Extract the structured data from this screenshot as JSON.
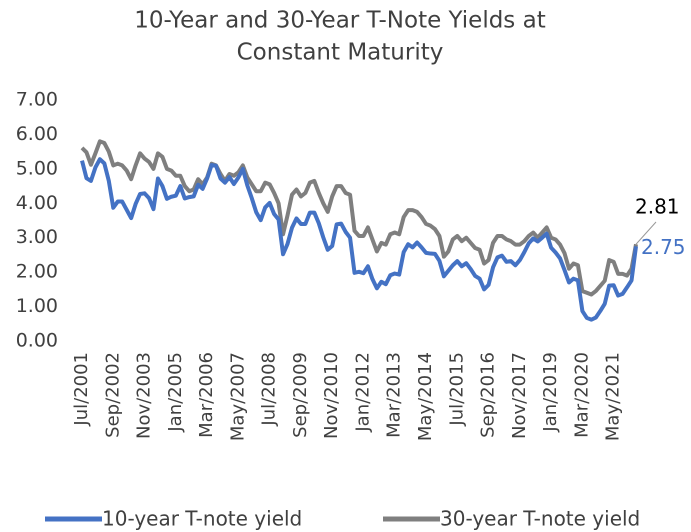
{
  "chart_data": {
    "type": "line",
    "title": [
      "10-Year and 30-Year T-Note Yields at",
      "Constant Maturity"
    ],
    "categories": [
      "Jul/2001",
      null,
      null,
      null,
      null,
      null,
      null,
      "Sep/2002",
      null,
      null,
      null,
      null,
      null,
      null,
      "Nov/2003",
      null,
      null,
      null,
      null,
      null,
      null,
      "Jan/2005",
      null,
      null,
      null,
      null,
      null,
      null,
      "Mar/2006",
      null,
      null,
      null,
      null,
      null,
      null,
      "May/2007",
      null,
      null,
      null,
      null,
      null,
      null,
      "Jul/2008",
      null,
      null,
      null,
      null,
      null,
      null,
      "Sep/2009",
      null,
      null,
      null,
      null,
      null,
      null,
      "Nov/2010",
      null,
      null,
      null,
      null,
      null,
      null,
      "Jan/2012",
      null,
      null,
      null,
      null,
      null,
      null,
      "Mar/2013",
      null,
      null,
      null,
      null,
      null,
      null,
      "May/2014",
      null,
      null,
      null,
      null,
      null,
      null,
      "Jul/2015",
      null,
      null,
      null,
      null,
      null,
      null,
      "Sep/2016",
      null,
      null,
      null,
      null,
      null,
      null,
      "Nov/2017",
      null,
      null,
      null,
      null,
      null,
      null,
      "Jan/2019",
      null,
      null,
      null,
      null,
      null,
      null,
      "Mar/2020",
      null,
      null,
      null,
      null,
      null,
      null,
      "May/2021",
      null,
      null,
      null,
      null,
      null
    ],
    "series": [
      {
        "name": "10-year T-note yield",
        "color": "#4472c4",
        "values": [
          5.24,
          4.73,
          4.65,
          5.04,
          5.28,
          5.16,
          4.65,
          3.87,
          4.05,
          4.05,
          3.81,
          3.57,
          3.98,
          4.27,
          4.29,
          4.15,
          3.83,
          4.72,
          4.5,
          4.13,
          4.19,
          4.22,
          4.5,
          4.14,
          4.18,
          4.2,
          4.54,
          4.42,
          4.72,
          5.11,
          5.09,
          4.72,
          4.6,
          4.76,
          4.56,
          4.75,
          5.0,
          4.52,
          4.15,
          3.74,
          3.51,
          3.88,
          4.01,
          3.69,
          3.53,
          2.52,
          2.82,
          3.29,
          3.56,
          3.4,
          3.4,
          3.73,
          3.73,
          3.42,
          3.01,
          2.65,
          2.76,
          3.39,
          3.41,
          3.17,
          3.0,
          1.98,
          2.01,
          1.97,
          2.17,
          1.8,
          1.53,
          1.72,
          1.65,
          1.91,
          1.96,
          1.93,
          2.58,
          2.81,
          2.72,
          2.86,
          2.72,
          2.56,
          2.54,
          2.53,
          2.33,
          1.88,
          2.04,
          2.2,
          2.32,
          2.17,
          2.26,
          2.09,
          1.89,
          1.81,
          1.5,
          1.63,
          2.14,
          2.43,
          2.48,
          2.3,
          2.32,
          2.2,
          2.35,
          2.58,
          2.84,
          2.98,
          2.89,
          3.0,
          3.12,
          2.71,
          2.57,
          2.4,
          2.06,
          1.7,
          1.81,
          1.76,
          0.87,
          0.67,
          0.62,
          0.68,
          0.87,
          1.08,
          1.61,
          1.62,
          1.32,
          1.37,
          1.56,
          1.76,
          2.75
        ]
      },
      {
        "name": "30-year T-note yield",
        "color": "#7f7f7f",
        "values": [
          5.61,
          5.48,
          5.12,
          5.45,
          5.8,
          5.75,
          5.5,
          5.1,
          5.15,
          5.1,
          4.95,
          4.7,
          5.1,
          5.45,
          5.3,
          5.2,
          5.0,
          5.45,
          5.35,
          5.0,
          4.95,
          4.8,
          4.8,
          4.5,
          4.35,
          4.4,
          4.7,
          4.55,
          4.75,
          5.15,
          5.1,
          4.85,
          4.65,
          4.85,
          4.8,
          4.9,
          5.1,
          4.75,
          4.55,
          4.35,
          4.35,
          4.6,
          4.55,
          4.3,
          4.0,
          3.1,
          3.65,
          4.25,
          4.4,
          4.2,
          4.3,
          4.6,
          4.65,
          4.3,
          4.0,
          3.75,
          4.2,
          4.5,
          4.5,
          4.3,
          4.25,
          3.2,
          3.05,
          3.05,
          3.3,
          2.95,
          2.6,
          2.85,
          2.8,
          3.1,
          3.15,
          3.1,
          3.6,
          3.8,
          3.8,
          3.75,
          3.6,
          3.4,
          3.35,
          3.25,
          3.05,
          2.45,
          2.6,
          2.95,
          3.05,
          2.9,
          3.0,
          2.85,
          2.7,
          2.65,
          2.25,
          2.35,
          2.85,
          3.05,
          3.05,
          2.95,
          2.9,
          2.8,
          2.8,
          2.9,
          3.05,
          3.15,
          3.0,
          3.15,
          3.3,
          3.0,
          2.95,
          2.8,
          2.55,
          2.1,
          2.25,
          2.2,
          1.45,
          1.4,
          1.35,
          1.45,
          1.6,
          1.75,
          2.35,
          2.3,
          1.95,
          1.95,
          1.9,
          2.1,
          2.81
        ]
      }
    ],
    "ylim": [
      0,
      7
    ],
    "yticks": [
      {
        "value": 0,
        "label": "0.00"
      },
      {
        "value": 1,
        "label": "1.00"
      },
      {
        "value": 2,
        "label": "2.00"
      },
      {
        "value": 3,
        "label": "3.00"
      },
      {
        "value": 4,
        "label": "4.00"
      },
      {
        "value": 5,
        "label": "5.00"
      },
      {
        "value": 6,
        "label": "6.00"
      },
      {
        "value": 7,
        "label": "7.00"
      }
    ],
    "grid": false
  }
}
